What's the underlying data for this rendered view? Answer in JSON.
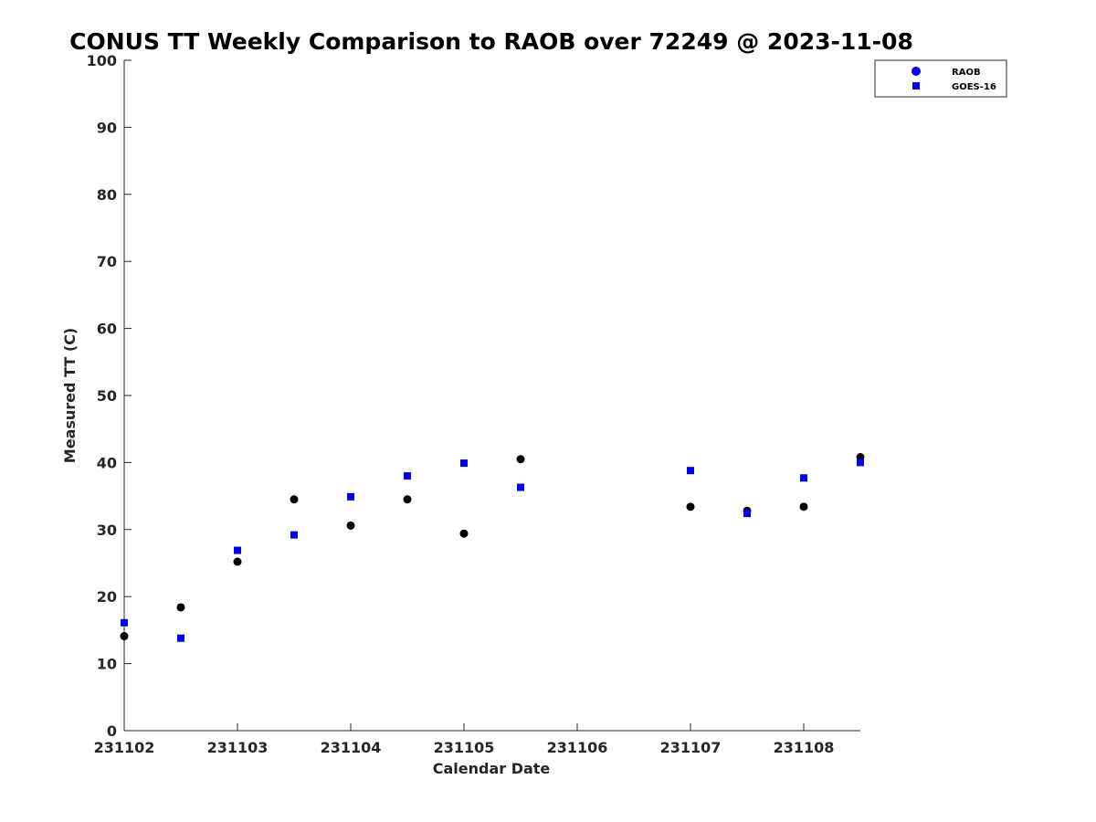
{
  "chart_data": {
    "type": "scatter",
    "title": "CONUS TT Weekly Comparison to RAOB over 72249 @ 2023-11-08",
    "xlabel": "Calendar Date",
    "ylabel": "Measured TT (C)",
    "ylim": [
      0,
      100
    ],
    "yticks": [
      "0",
      "10",
      "20",
      "30",
      "40",
      "50",
      "60",
      "70",
      "80",
      "90",
      "100"
    ],
    "xticks": [
      "231102",
      "231103",
      "231104",
      "231105",
      "231106",
      "231107",
      "231108"
    ],
    "xlim": [
      231102,
      231108.5
    ],
    "grid": false,
    "legend_position": "top-right",
    "series": [
      {
        "name": "RAOB",
        "marker": "circle",
        "color": "#000000",
        "legend_color": "#0000e0",
        "x": [
          231102,
          231102.5,
          231103,
          231103.5,
          231104,
          231104.5,
          231105,
          231105.5,
          231107,
          231107.5,
          231108,
          231108.5
        ],
        "y": [
          14.1,
          18.4,
          25.2,
          34.5,
          30.6,
          34.5,
          29.4,
          40.5,
          33.4,
          32.8,
          33.4,
          40.8
        ]
      },
      {
        "name": "GOES-16",
        "marker": "square",
        "color": "#0000e0",
        "legend_color": "#0000e0",
        "x": [
          231102,
          231102.5,
          231103,
          231103.5,
          231104,
          231104.5,
          231105,
          231105.5,
          231107,
          231107.5,
          231108,
          231108.5
        ],
        "y": [
          16.1,
          13.8,
          26.9,
          29.2,
          34.9,
          38.0,
          39.9,
          36.3,
          38.8,
          32.4,
          37.7,
          40.0
        ]
      }
    ]
  }
}
